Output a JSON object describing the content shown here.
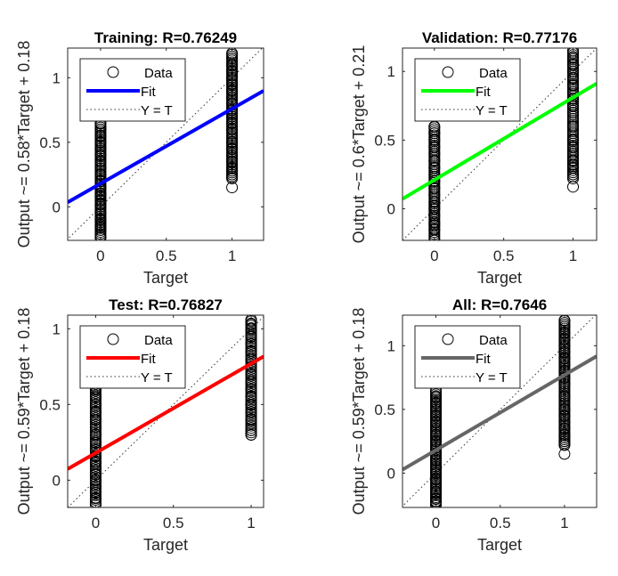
{
  "chart_data": [
    {
      "type": "scatter",
      "title": "Training: R=0.76249",
      "xlabel": "Target",
      "ylabel": "Output ~= 0.58*Target + 0.18",
      "xlim": [
        -0.25,
        1.24
      ],
      "ylim": [
        -0.26,
        1.23
      ],
      "xticks": [
        "0",
        "0.5",
        "1"
      ],
      "yticks": [
        "0",
        "0.5",
        "1"
      ],
      "fit": {
        "slope": 0.58,
        "intercept": 0.18
      },
      "fit_color": "#0000ff",
      "data": {
        "target0": [
          -0.24,
          -0.18,
          -0.14,
          -0.1,
          -0.05,
          0,
          0.05,
          0.1,
          0.15,
          0.2,
          0.25,
          0.3,
          0.35,
          0.4,
          0.45,
          0.5,
          0.55,
          0.6,
          0.65,
          -0.16,
          -0.12,
          0.02,
          0.08
        ],
        "target1": [
          0.15,
          0.22,
          0.25,
          0.3,
          0.35,
          0.4,
          0.45,
          0.5,
          0.6,
          0.7,
          0.75,
          0.8,
          0.85,
          0.9,
          0.95,
          1.0,
          1.05,
          1.1,
          1.15,
          1.19,
          0.28,
          0.65
        ]
      },
      "legend": [
        "Data",
        "Fit",
        "Y = T"
      ],
      "legend_position": "top-left"
    },
    {
      "type": "scatter",
      "title": "Validation: R=0.77176",
      "xlabel": "Target",
      "ylabel": "Output ~= 0.6*Target + 0.21",
      "xlim": [
        -0.23,
        1.17
      ],
      "ylim": [
        -0.23,
        1.17
      ],
      "xticks": [
        "0",
        "0.5",
        "1"
      ],
      "yticks": [
        "0",
        "0.5",
        "1"
      ],
      "fit": {
        "slope": 0.6,
        "intercept": 0.21
      },
      "fit_color": "#00ff00",
      "data": {
        "target0": [
          -0.23,
          -0.15,
          -0.1,
          -0.05,
          0,
          0.05,
          0.1,
          0.15,
          0.2,
          0.25,
          0.3,
          0.35,
          0.4,
          0.45,
          0.5,
          0.55,
          0.6,
          -0.12,
          0.02
        ],
        "target1": [
          0.16,
          0.25,
          0.3,
          0.35,
          0.4,
          0.45,
          0.5,
          0.6,
          0.7,
          0.75,
          0.8,
          0.85,
          0.9,
          0.95,
          1.0,
          1.05,
          1.1,
          1.15,
          0.32
        ]
      },
      "legend": [
        "Data",
        "Fit",
        "Y = T"
      ],
      "legend_position": "top-left"
    },
    {
      "type": "scatter",
      "title": "Test: R=0.76827",
      "xlabel": "Target",
      "ylabel": "Output ~= 0.59*Target + 0.18",
      "xlim": [
        -0.18,
        1.08
      ],
      "ylim": [
        -0.18,
        1.09
      ],
      "xticks": [
        "0",
        "0.5",
        "1"
      ],
      "yticks": [
        "0",
        "0.5",
        "1"
      ],
      "fit": {
        "slope": 0.59,
        "intercept": 0.18
      },
      "fit_color": "#ff0000",
      "data": {
        "target0": [
          -0.16,
          -0.12,
          -0.08,
          -0.04,
          0,
          0.04,
          0.08,
          0.12,
          0.16,
          0.2,
          0.25,
          0.3,
          0.35,
          0.4,
          0.45,
          0.5,
          0.55,
          0.6,
          0.65
        ],
        "target1": [
          0.3,
          0.33,
          0.4,
          0.45,
          0.5,
          0.55,
          0.6,
          0.65,
          0.7,
          0.75,
          0.8,
          0.85,
          0.9,
          0.95,
          1.0,
          1.03,
          1.06
        ]
      },
      "legend": [
        "Data",
        "Fit",
        "Y = T"
      ],
      "legend_position": "top-left"
    },
    {
      "type": "scatter",
      "title": "All: R=0.7646",
      "xlabel": "Target",
      "ylabel": "Output ~= 0.59*Target + 0.18",
      "xlim": [
        -0.26,
        1.25
      ],
      "ylim": [
        -0.27,
        1.24
      ],
      "xticks": [
        "0",
        "0.5",
        "1"
      ],
      "yticks": [
        "0",
        "0.5",
        "1"
      ],
      "fit": {
        "slope": 0.59,
        "intercept": 0.18
      },
      "fit_color": "#666666",
      "data": {
        "target0": [
          -0.25,
          -0.2,
          -0.15,
          -0.1,
          -0.05,
          0,
          0.05,
          0.1,
          0.15,
          0.2,
          0.25,
          0.3,
          0.35,
          0.4,
          0.45,
          0.5,
          0.55,
          0.6,
          0.65,
          -0.23,
          0.02
        ],
        "target1": [
          0.15,
          0.22,
          0.25,
          0.3,
          0.35,
          0.4,
          0.45,
          0.5,
          0.6,
          0.7,
          0.75,
          0.8,
          0.85,
          0.9,
          0.95,
          1.0,
          1.05,
          1.1,
          1.15,
          1.2,
          0.28
        ]
      },
      "legend": [
        "Data",
        "Fit",
        "Y = T"
      ],
      "legend_position": "top-left"
    }
  ]
}
